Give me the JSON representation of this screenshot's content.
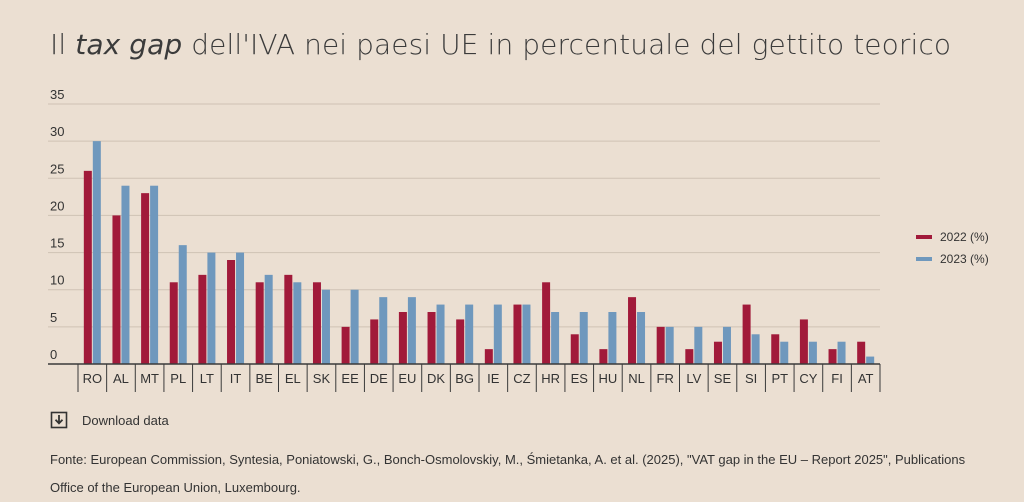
{
  "title": {
    "prefix": "Il ",
    "italic": "tax gap",
    "suffix": " dell'IVA nei paesi UE in percentuale del gettito teorico"
  },
  "download": {
    "label": "Download data",
    "icon": "download-icon"
  },
  "source": {
    "text": "Fonte: European Commission, Syntesia, Poniatowski, G., Bonch-Osmolovskiy, M., Śmietanka, A. et al. (2025), \"VAT gap in the EU – Report 2025\", Publications Office of the European Union, Luxembourg."
  },
  "colors": {
    "series_2022": "#a11a3a",
    "series_2023": "#6f98bd",
    "grid": "#cfc2b4",
    "axis": "#3a3a3a"
  },
  "chart_data": {
    "type": "bar",
    "title": "Il tax gap dell'IVA nei paesi UE in percentuale del gettito teorico",
    "xlabel": "",
    "ylabel": "",
    "ylim": [
      0,
      35
    ],
    "yticks": [
      0,
      5,
      10,
      15,
      20,
      25,
      30,
      35
    ],
    "grid": true,
    "legend_position": "right",
    "categories": [
      "RO",
      "AL",
      "MT",
      "PL",
      "LT",
      "IT",
      "BE",
      "EL",
      "SK",
      "EE",
      "DE",
      "EU",
      "DK",
      "BG",
      "IE",
      "CZ",
      "HR",
      "ES",
      "HU",
      "NL",
      "FR",
      "LV",
      "SE",
      "SI",
      "PT",
      "CY",
      "FI",
      "AT"
    ],
    "series": [
      {
        "name": "2022 (%)",
        "values": [
          26,
          20,
          23,
          11,
          12,
          14,
          11,
          12,
          11,
          5,
          6,
          7,
          7,
          6,
          2,
          8,
          11,
          4,
          2,
          9,
          5,
          2,
          3,
          8,
          4,
          6,
          2,
          3
        ]
      },
      {
        "name": "2023 (%)",
        "values": [
          30,
          24,
          24,
          16,
          15,
          15,
          12,
          11,
          10,
          10,
          9,
          9,
          8,
          8,
          8,
          8,
          7,
          7,
          7,
          7,
          5,
          5,
          5,
          4,
          3,
          3,
          3,
          1
        ]
      }
    ]
  }
}
